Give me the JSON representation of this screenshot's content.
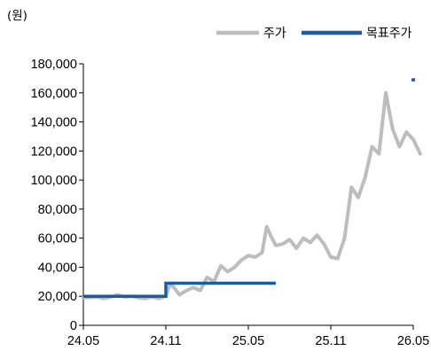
{
  "chart_data": {
    "type": "line",
    "unit_label": "(원)",
    "y_ticks": [
      "0",
      "20,000",
      "40,000",
      "60,000",
      "80,000",
      "100,000",
      "120,000",
      "140,000",
      "160,000",
      "180,000"
    ],
    "x_ticks": [
      "24.05",
      "24.11",
      "25.05",
      "25.11",
      "26.05"
    ],
    "ylim": [
      0,
      180000
    ],
    "xlim": [
      "24.05",
      "26.05"
    ],
    "grid": false,
    "legend_position": "top-right",
    "series": [
      {
        "name": "주가",
        "color": "#bdbdbd",
        "points": [
          [
            "24.05",
            19000
          ],
          [
            "24.06",
            19500
          ],
          [
            "24.06",
            18500
          ],
          [
            "24.07",
            19500
          ],
          [
            "24.07",
            21000
          ],
          [
            "24.08",
            19500
          ],
          [
            "24.08",
            20000
          ],
          [
            "24.09",
            19000
          ],
          [
            "24.09",
            18500
          ],
          [
            "24.10",
            19500
          ],
          [
            "24.10",
            18500
          ],
          [
            "24.11",
            20000
          ],
          [
            "24.11",
            29000
          ],
          [
            "24.11",
            25000
          ],
          [
            "24.12",
            21000
          ],
          [
            "24.12",
            24000
          ],
          [
            "25.01",
            26000
          ],
          [
            "25.01",
            24000
          ],
          [
            "25.02",
            33000
          ],
          [
            "25.02",
            30000
          ],
          [
            "25.03",
            41000
          ],
          [
            "25.03",
            37000
          ],
          [
            "25.04",
            40000
          ],
          [
            "25.04",
            45000
          ],
          [
            "25.05",
            48000
          ],
          [
            "25.05",
            47000
          ],
          [
            "25.06",
            50000
          ],
          [
            "25.06",
            68000
          ],
          [
            "25.06",
            61000
          ],
          [
            "25.07",
            55000
          ],
          [
            "25.07",
            56000
          ],
          [
            "25.08",
            59000
          ],
          [
            "25.08",
            53000
          ],
          [
            "25.09",
            60000
          ],
          [
            "25.09",
            57000
          ],
          [
            "25.10",
            62000
          ],
          [
            "25.10",
            56000
          ],
          [
            "25.11",
            47000
          ],
          [
            "25.11",
            46000
          ],
          [
            "25.12",
            60000
          ],
          [
            "25.12",
            95000
          ],
          [
            "26.01",
            88000
          ],
          [
            "26.01",
            102000
          ],
          [
            "26.02",
            123000
          ],
          [
            "26.02",
            118000
          ],
          [
            "26.03",
            160000
          ],
          [
            "26.03",
            135000
          ],
          [
            "26.04",
            123000
          ],
          [
            "26.04",
            133000
          ],
          [
            "26.05",
            128000
          ],
          [
            "26.05",
            118000
          ]
        ]
      },
      {
        "name": "목표주가",
        "color": "#1a5ca8",
        "points": [
          [
            "24.05",
            20000
          ],
          [
            "24.11",
            20000
          ],
          [
            "24.11",
            29000
          ],
          [
            "25.07",
            29000
          ],
          [
            "26.05",
            169000
          ]
        ]
      }
    ]
  }
}
